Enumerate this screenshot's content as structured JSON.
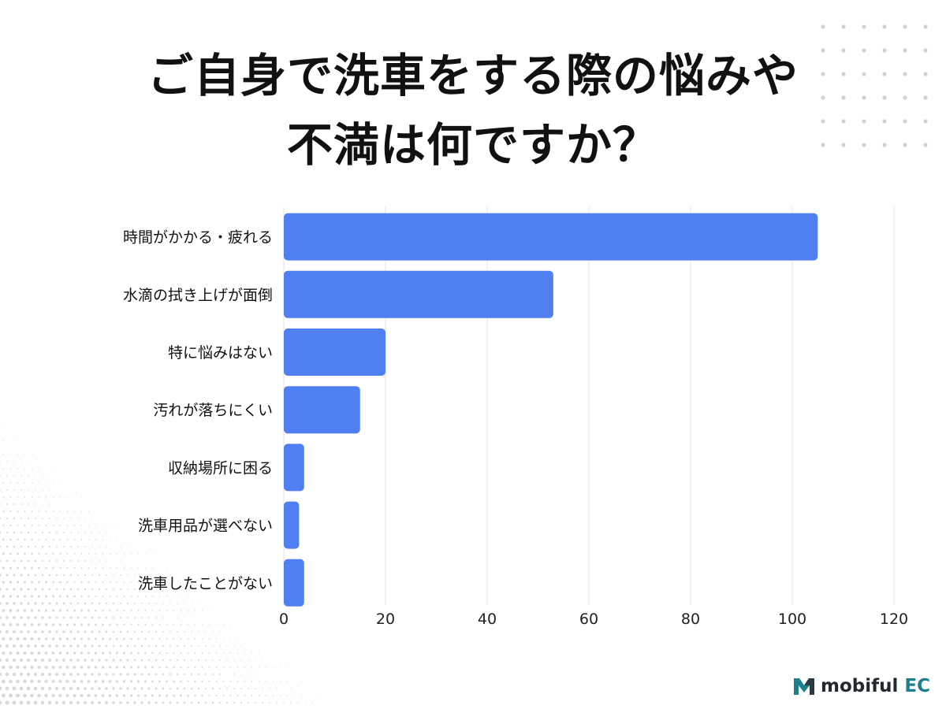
{
  "title_lines": [
    "ご自身で洗車をする際の悩みや",
    "不満は何ですか？"
  ],
  "brand": {
    "name": "mobiful",
    "suffix": "EC"
  },
  "colors": {
    "bar": "#4f7ff0",
    "grid": "#e3e3e3",
    "text": "#111111",
    "brand_teal": "#1b7f8c"
  },
  "chart_data": {
    "type": "bar",
    "orientation": "horizontal",
    "categories": [
      "時間がかかる・疲れる",
      "水滴の拭き上げが面倒",
      "特に悩みはない",
      "汚れが落ちにくい",
      "収納場所に困る",
      "洗車用品が選べない",
      "洗車したことがない"
    ],
    "values": [
      105,
      53,
      20,
      15,
      4,
      3,
      4
    ],
    "xlim": [
      0,
      120
    ],
    "xticks": [
      0,
      20,
      40,
      60,
      80,
      100,
      120
    ],
    "grid": true,
    "legend": "none",
    "title": "ご自身で洗車をする際の悩みや不満は何ですか？"
  }
}
